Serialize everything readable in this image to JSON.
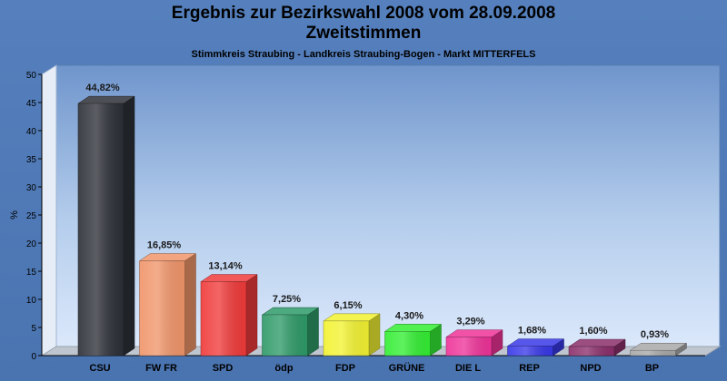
{
  "chart_data": {
    "type": "bar",
    "title": "Ergebnis zur Bezirkswahl 2008 vom 28.09.2008",
    "title2": "Zweitstimmen",
    "subtitle": "Stimmkreis Straubing - Landkreis Straubing-Bogen - Markt MITTERFELS",
    "ylabel": "%",
    "ylim": [
      0,
      50
    ],
    "yticks": [
      "0",
      "5",
      "10",
      "15",
      "20",
      "25",
      "30",
      "35",
      "40",
      "45",
      "50"
    ],
    "categories": [
      "CSU",
      "FW FR",
      "SPD",
      "ödp",
      "FDP",
      "GRÜNE",
      "DIE L",
      "REP",
      "NPD",
      "BP"
    ],
    "values": [
      44.82,
      16.85,
      13.14,
      7.25,
      6.15,
      4.3,
      3.29,
      1.68,
      1.6,
      0.93
    ],
    "labels": [
      "44,82%",
      "16,85%",
      "13,14%",
      "7,25%",
      "6,15%",
      "4,30%",
      "3,29%",
      "1,68%",
      "1,60%",
      "0,93%"
    ],
    "colors": [
      "#2d3038",
      "#f0956a",
      "#f03a3a",
      "#2e9a68",
      "#f2f232",
      "#33ee33",
      "#ee3399",
      "#3838e8",
      "#8b2f6b",
      "#a8a8a8"
    ],
    "grid": false,
    "legend": "none"
  }
}
